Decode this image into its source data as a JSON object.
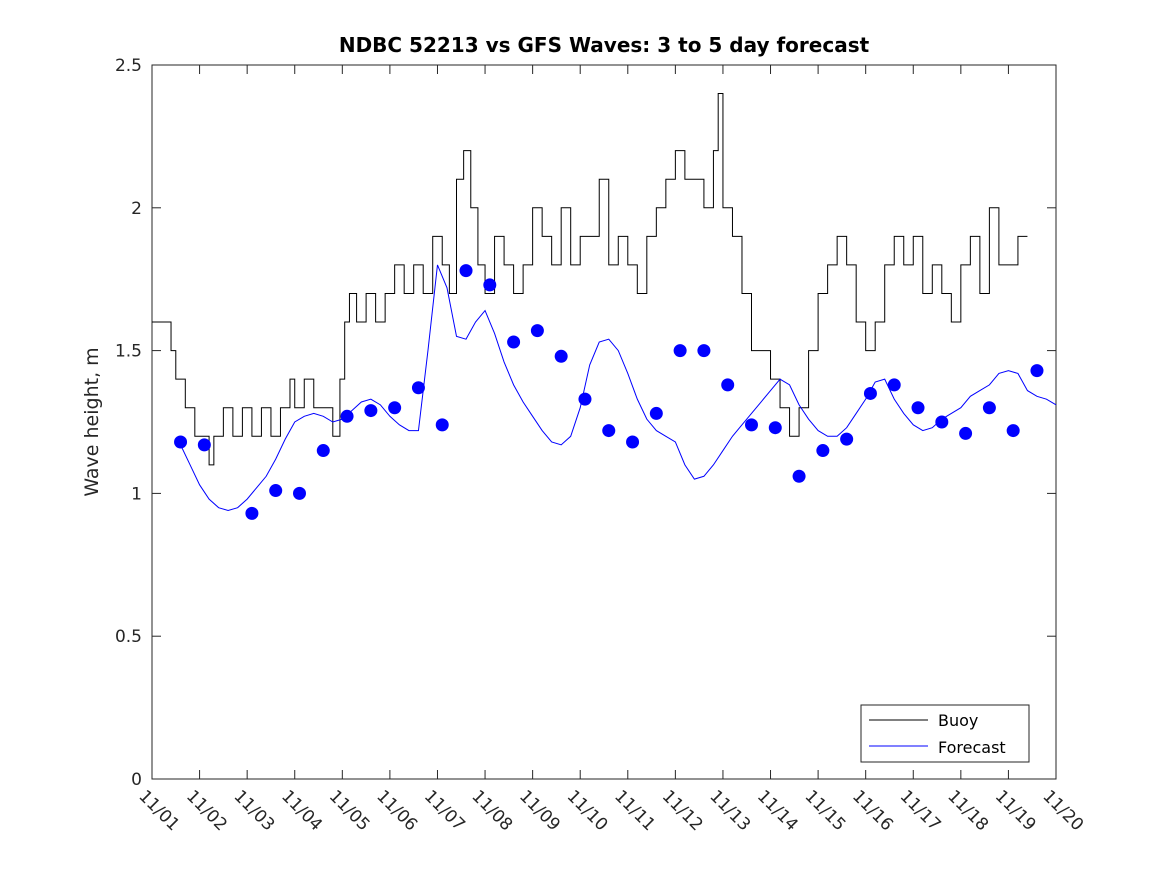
{
  "chart_data": {
    "type": "line",
    "title": "NDBC 52213 vs GFS Waves: 3 to 5 day forecast",
    "xlabel": "",
    "ylabel": "Wave height, m",
    "xlim": [
      0,
      19
    ],
    "ylim": [
      0,
      2.5
    ],
    "x_unit": "days since 11/01",
    "grid": false,
    "legend_position": "bottom-right",
    "x_ticks": [
      {
        "x": 0,
        "label": "11/01"
      },
      {
        "x": 1,
        "label": "11/02"
      },
      {
        "x": 2,
        "label": "11/03"
      },
      {
        "x": 3,
        "label": "11/04"
      },
      {
        "x": 4,
        "label": "11/05"
      },
      {
        "x": 5,
        "label": "11/06"
      },
      {
        "x": 6,
        "label": "11/07"
      },
      {
        "x": 7,
        "label": "11/08"
      },
      {
        "x": 8,
        "label": "11/09"
      },
      {
        "x": 9,
        "label": "11/10"
      },
      {
        "x": 10,
        "label": "11/11"
      },
      {
        "x": 11,
        "label": "11/12"
      },
      {
        "x": 12,
        "label": "11/13"
      },
      {
        "x": 13,
        "label": "11/14"
      },
      {
        "x": 14,
        "label": "11/15"
      },
      {
        "x": 15,
        "label": "11/16"
      },
      {
        "x": 16,
        "label": "11/17"
      },
      {
        "x": 17,
        "label": "11/18"
      },
      {
        "x": 18,
        "label": "11/19"
      },
      {
        "x": 19,
        "label": "11/20"
      }
    ],
    "y_ticks": [
      {
        "y": 0,
        "label": "0"
      },
      {
        "y": 0.5,
        "label": "0.5"
      },
      {
        "y": 1,
        "label": "1"
      },
      {
        "y": 1.5,
        "label": "1.5"
      },
      {
        "y": 2,
        "label": "2"
      },
      {
        "y": 2.5,
        "label": "2.5"
      }
    ],
    "legend": [
      {
        "name": "Buoy",
        "color": "#000000"
      },
      {
        "name": "Forecast",
        "color": "#0000ff"
      }
    ],
    "series": [
      {
        "name": "Buoy",
        "color": "#000000",
        "x": [
          0,
          0.1,
          0.4,
          0.5,
          0.7,
          0.9,
          1.0,
          1.2,
          1.3,
          1.5,
          1.7,
          1.9,
          2.1,
          2.3,
          2.5,
          2.7,
          2.9,
          3.0,
          3.2,
          3.4,
          3.6,
          3.8,
          3.95,
          4.05,
          4.15,
          4.3,
          4.5,
          4.7,
          4.9,
          5.1,
          5.3,
          5.5,
          5.7,
          5.9,
          6.1,
          6.25,
          6.4,
          6.55,
          6.7,
          6.85,
          7.0,
          7.2,
          7.4,
          7.6,
          7.8,
          8.0,
          8.2,
          8.4,
          8.6,
          8.8,
          9.0,
          9.2,
          9.4,
          9.6,
          9.8,
          10.0,
          10.2,
          10.4,
          10.6,
          10.8,
          11.0,
          11.2,
          11.4,
          11.6,
          11.8,
          11.9,
          12.0,
          12.2,
          12.4,
          12.6,
          12.8,
          13.0,
          13.2,
          13.4,
          13.6,
          13.8,
          14.0,
          14.2,
          14.4,
          14.6,
          14.8,
          15.0,
          15.2,
          15.4,
          15.6,
          15.8,
          16.0,
          16.2,
          16.4,
          16.6,
          16.8,
          17.0,
          17.2,
          17.4,
          17.6,
          17.8,
          18.0,
          18.2,
          18.4
        ],
        "y": [
          1.6,
          1.6,
          1.5,
          1.4,
          1.3,
          1.2,
          1.2,
          1.1,
          1.2,
          1.3,
          1.2,
          1.3,
          1.2,
          1.3,
          1.2,
          1.3,
          1.4,
          1.3,
          1.4,
          1.3,
          1.3,
          1.2,
          1.4,
          1.6,
          1.7,
          1.6,
          1.7,
          1.6,
          1.7,
          1.8,
          1.7,
          1.8,
          1.7,
          1.9,
          1.8,
          1.7,
          2.1,
          2.2,
          2.0,
          1.8,
          1.7,
          1.9,
          1.8,
          1.7,
          1.8,
          2.0,
          1.9,
          1.8,
          2.0,
          1.8,
          1.9,
          1.9,
          2.1,
          1.8,
          1.9,
          1.8,
          1.7,
          1.9,
          2.0,
          2.1,
          2.2,
          2.1,
          2.1,
          2.0,
          2.2,
          2.4,
          2.0,
          1.9,
          1.7,
          1.5,
          1.5,
          1.4,
          1.3,
          1.2,
          1.3,
          1.5,
          1.7,
          1.8,
          1.9,
          1.8,
          1.6,
          1.5,
          1.6,
          1.8,
          1.9,
          1.8,
          1.9,
          1.7,
          1.8,
          1.7,
          1.6,
          1.8,
          1.9,
          1.7,
          2.0,
          1.8,
          1.8,
          1.9,
          1.9
        ]
      },
      {
        "name": "Forecast",
        "color": "#0000ff",
        "x": [
          0.6,
          0.8,
          1.0,
          1.2,
          1.4,
          1.6,
          1.8,
          2.0,
          2.2,
          2.4,
          2.6,
          2.8,
          3.0,
          3.2,
          3.4,
          3.6,
          3.8,
          4.0,
          4.2,
          4.4,
          4.6,
          4.8,
          5.0,
          5.2,
          5.4,
          5.6,
          5.8,
          6.0,
          6.2,
          6.4,
          6.6,
          6.8,
          7.0,
          7.2,
          7.4,
          7.6,
          7.8,
          8.0,
          8.2,
          8.4,
          8.6,
          8.8,
          9.0,
          9.2,
          9.4,
          9.6,
          9.8,
          10.0,
          10.2,
          10.4,
          10.6,
          10.8,
          11.0,
          11.2,
          11.4,
          11.6,
          11.8,
          12.0,
          12.2,
          12.4,
          12.6,
          12.8,
          13.0,
          13.2,
          13.4,
          13.6,
          13.8,
          14.0,
          14.2,
          14.4,
          14.6,
          14.8,
          15.0,
          15.2,
          15.4,
          15.6,
          15.8,
          16.0,
          16.2,
          16.4,
          16.6,
          16.8,
          17.0,
          17.2,
          17.4,
          17.6,
          17.8,
          18.0,
          18.2,
          18.4,
          18.6,
          18.8,
          19.0
        ],
        "y": [
          1.17,
          1.1,
          1.03,
          0.98,
          0.95,
          0.94,
          0.95,
          0.98,
          1.02,
          1.06,
          1.12,
          1.19,
          1.25,
          1.27,
          1.28,
          1.27,
          1.25,
          1.26,
          1.29,
          1.32,
          1.33,
          1.31,
          1.27,
          1.24,
          1.22,
          1.22,
          1.5,
          1.8,
          1.72,
          1.55,
          1.54,
          1.6,
          1.64,
          1.56,
          1.46,
          1.38,
          1.32,
          1.27,
          1.22,
          1.18,
          1.17,
          1.2,
          1.3,
          1.45,
          1.53,
          1.54,
          1.5,
          1.42,
          1.33,
          1.26,
          1.22,
          1.2,
          1.18,
          1.1,
          1.05,
          1.06,
          1.1,
          1.15,
          1.2,
          1.24,
          1.28,
          1.32,
          1.36,
          1.4,
          1.38,
          1.31,
          1.26,
          1.22,
          1.2,
          1.2,
          1.23,
          1.28,
          1.33,
          1.39,
          1.4,
          1.33,
          1.28,
          1.24,
          1.22,
          1.23,
          1.26,
          1.28,
          1.3,
          1.34,
          1.36,
          1.38,
          1.42,
          1.43,
          1.42,
          1.36,
          1.34,
          1.33,
          1.31
        ]
      }
    ],
    "forecast_markers": {
      "x": [
        0.6,
        1.1,
        2.1,
        2.6,
        3.1,
        3.6,
        4.1,
        4.6,
        5.1,
        5.6,
        6.1,
        6.6,
        7.1,
        7.6,
        8.1,
        8.6,
        9.1,
        9.6,
        10.1,
        10.6,
        11.1,
        11.6,
        12.1,
        12.6,
        13.1,
        13.6,
        14.1,
        14.6,
        15.1,
        15.6,
        16.1,
        16.6,
        17.1,
        17.6,
        18.1,
        18.6
      ],
      "y": [
        1.18,
        1.17,
        0.93,
        1.01,
        1.0,
        1.15,
        1.27,
        1.29,
        1.3,
        1.37,
        1.24,
        1.78,
        1.73,
        1.53,
        1.57,
        1.48,
        1.33,
        1.22,
        1.18,
        1.28,
        1.5,
        1.5,
        1.38,
        1.24,
        1.23,
        1.06,
        1.15,
        1.19,
        1.35,
        1.38,
        1.3,
        1.25,
        1.21,
        1.3,
        1.22,
        1.43
      ]
    }
  }
}
